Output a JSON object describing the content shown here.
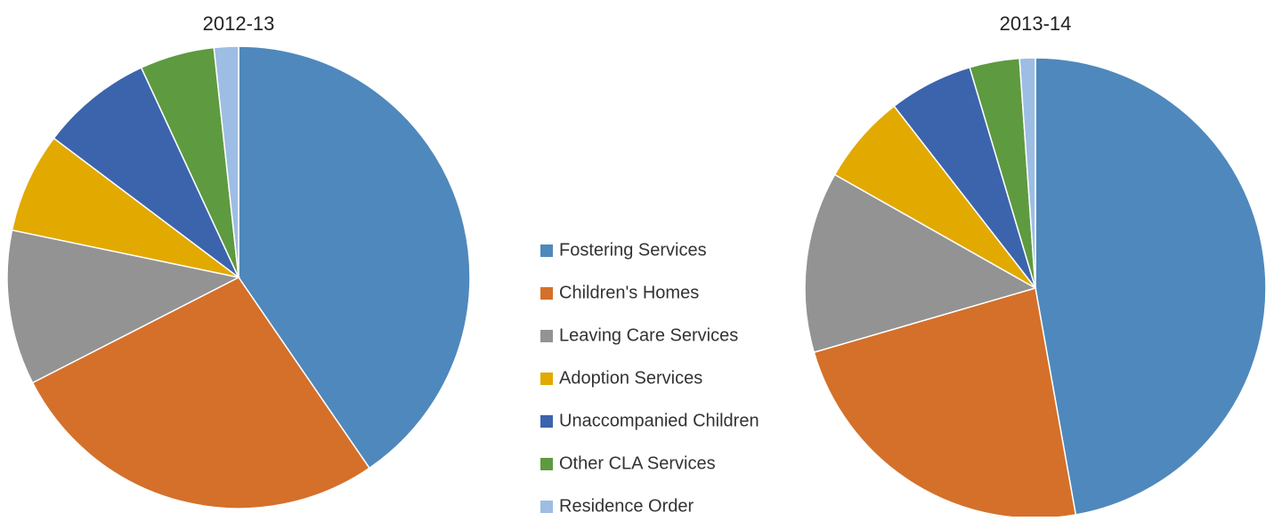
{
  "chart_data": {
    "type": "pie",
    "categories": [
      "Fostering Services",
      "Children's Homes",
      "Leaving Care Services",
      "Adoption Services",
      "Unaccompanied Children",
      "Other CLA Services",
      "Residence Order"
    ],
    "colors": [
      "#4f88bc",
      "#d4702a",
      "#939393",
      "#e2a900",
      "#3b64ad",
      "#5e9a3f",
      "#9dbde4"
    ],
    "series": [
      {
        "name": "2012-13",
        "values": [
          40.4,
          27,
          10.8,
          7,
          7.8,
          5.2,
          1.7
        ]
      },
      {
        "name": "2013-14",
        "values": [
          47.2,
          23.3,
          12.7,
          6.3,
          5.9,
          3.5,
          1.1
        ]
      }
    ]
  }
}
